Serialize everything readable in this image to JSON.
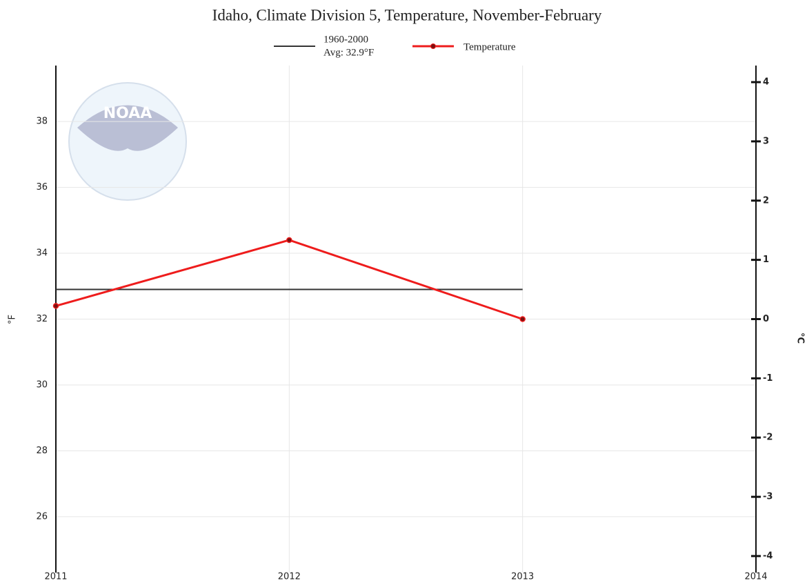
{
  "chart_data": {
    "type": "line",
    "title": "Idaho, Climate Division 5, Temperature, November-February",
    "watermark": "NOAA",
    "y_label": "°F",
    "y2_label": "°C",
    "xlim": [
      2011,
      2014
    ],
    "xticks": [
      2011,
      2012,
      2013,
      2014
    ],
    "ylim": [
      24.3,
      39.7
    ],
    "yticks": [
      26,
      28,
      30,
      32,
      34,
      36,
      38
    ],
    "y2lim": [
      -4.28,
      4.28
    ],
    "y2ticks": [
      -4,
      -3,
      -2,
      -1,
      0,
      1,
      2,
      3,
      4
    ],
    "grid": true,
    "series": [
      {
        "name": "1960-2000",
        "legend_note": "Avg: 32.9°F",
        "color": "#333333",
        "markers": false,
        "x": [
          2011,
          2012,
          2013
        ],
        "values": [
          32.9,
          32.9,
          32.9
        ]
      },
      {
        "name": "Temperature",
        "color": "#ee1c1c",
        "markers": true,
        "x": [
          2011,
          2012,
          2013
        ],
        "values": [
          32.4,
          34.4,
          32.0
        ]
      }
    ]
  }
}
